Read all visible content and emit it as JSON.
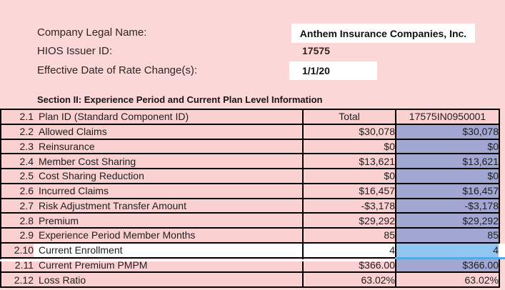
{
  "colors": {
    "page_bg": "#fcd7d7",
    "cell_pink": "#fad0d1",
    "cell_purple": "#a2a6d2",
    "cell_blue": "#8fc5f0",
    "selection_blue": "#57a9e6",
    "border": "#000000",
    "text": "#1f1f1f"
  },
  "fields": [
    {
      "label": "Company Legal Name:",
      "value": "Anthem Insurance Companies, Inc."
    },
    {
      "label": "HIOS Issuer ID:",
      "value": "17575"
    },
    {
      "label": "Effective Date of Rate Change(s):",
      "value": "1/1/20"
    }
  ],
  "section_title": "Section II: Experience Period and Current Plan Level Information",
  "table": {
    "header_row": {
      "num": "2.1",
      "label": "Plan ID (Standard Component ID)",
      "total": "Total",
      "plan": "17575IN0950001"
    },
    "rows": [
      {
        "num": "2.1",
        "label": "Plan ID (Standard Component ID)",
        "total": "Total",
        "plan": "17575IN0950001",
        "variant": "header"
      },
      {
        "num": "2.2",
        "label": "Allowed Claims",
        "total": "$30,078",
        "plan": "$30,078",
        "variant": ""
      },
      {
        "num": "2.3",
        "label": "Reinsurance",
        "total": "$0",
        "plan": "$0",
        "variant": ""
      },
      {
        "num": "2.4",
        "label": "Member Cost Sharing",
        "total": "$13,621",
        "plan": "$13,621",
        "variant": ""
      },
      {
        "num": "2.5",
        "label": "Cost Sharing Reduction",
        "total": "$0",
        "plan": "$0",
        "variant": ""
      },
      {
        "num": "2.6",
        "label": "Incurred Claims",
        "total": "$16,457",
        "plan": "$16,457",
        "variant": ""
      },
      {
        "num": "2.7",
        "label": "Risk Adjustment Transfer Amount",
        "total": "-$3,178",
        "plan": "-$3,178",
        "variant": ""
      },
      {
        "num": "2.8",
        "label": "Premium",
        "total": "$29,292",
        "plan": "$29,292",
        "variant": ""
      },
      {
        "num": "2.9",
        "label": "Experience Period Member Months",
        "total": "85",
        "plan": "85",
        "variant": ""
      },
      {
        "num": "2.10",
        "label": "Current Enrollment",
        "total": "4",
        "plan": "4",
        "variant": "selected"
      },
      {
        "num": "2.11",
        "label": "Current Premium PMPM",
        "total": "$366.00",
        "plan": "$366.00",
        "variant": ""
      },
      {
        "num": "2.12",
        "label": "Loss Ratio",
        "total": "63.02%",
        "plan": "63.02%",
        "variant": "plan-pink"
      }
    ]
  }
}
